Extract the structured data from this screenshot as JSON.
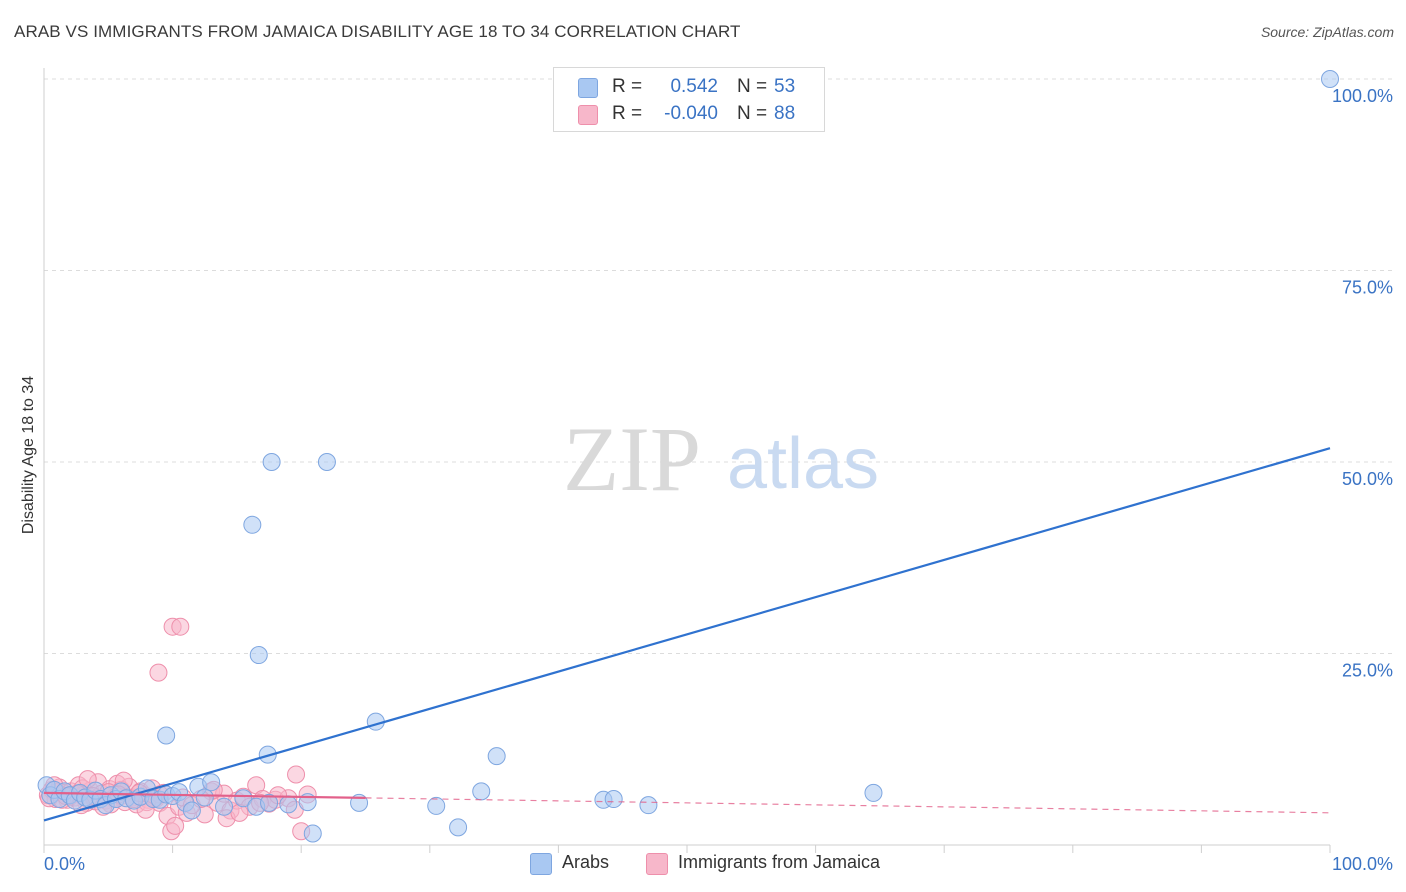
{
  "title": "ARAB VS IMMIGRANTS FROM JAMAICA DISABILITY AGE 18 TO 34 CORRELATION CHART",
  "source": "Source: ZipAtlas.com",
  "watermark": {
    "zip": "ZIP",
    "atlas": "atlas"
  },
  "colors": {
    "arabs_fill": "#a9c8f2",
    "arabs_stroke": "#7ea6e0",
    "arabs_line": "#2f72cf",
    "jamaica_fill": "#f7b7ca",
    "jamaica_stroke": "#ee8fab",
    "jamaica_line": "#e2608a",
    "axis_text": "#3a73c4",
    "grid": "#dcdcdc"
  },
  "legend": {
    "rows": [
      {
        "r_label": "R =",
        "r_value": "0.542",
        "n_label": "N =",
        "n_value": "53"
      },
      {
        "r_label": "R =",
        "r_value": "-0.040",
        "n_label": "N =",
        "n_value": "88"
      }
    ]
  },
  "bottom_legend": {
    "arabs": "Arabs",
    "jamaica": "Immigrants from Jamaica"
  },
  "chart_data": {
    "type": "scatter",
    "title": "ARAB VS IMMIGRANTS FROM JAMAICA DISABILITY AGE 18 TO 34 CORRELATION CHART",
    "xlabel": "",
    "ylabel": "Disability Age 18 to 34",
    "xlim": [
      0,
      100
    ],
    "ylim": [
      0,
      100
    ],
    "x_tick_labels": [
      "0.0%",
      "100.0%"
    ],
    "y_ticks": [
      25,
      50,
      75,
      100
    ],
    "y_tick_labels": [
      "25.0%",
      "50.0%",
      "75.0%",
      "100.0%"
    ],
    "series": [
      {
        "name": "Arabs",
        "r": 0.542,
        "n": 53,
        "trend": {
          "x0": 0,
          "y0": 3.2,
          "x1": 100,
          "y1": 51.8,
          "dashed_from": null
        },
        "points": [
          [
            0.2,
            7.8
          ],
          [
            0.5,
            6.5
          ],
          [
            0.8,
            7.2
          ],
          [
            1.2,
            6.0
          ],
          [
            1.6,
            7.0
          ],
          [
            2.0,
            6.5
          ],
          [
            2.4,
            5.8
          ],
          [
            2.8,
            6.8
          ],
          [
            3.2,
            6.2
          ],
          [
            3.6,
            5.9
          ],
          [
            4.0,
            7.1
          ],
          [
            4.4,
            6.0
          ],
          [
            4.8,
            5.2
          ],
          [
            5.2,
            6.5
          ],
          [
            5.6,
            6.0
          ],
          [
            6.0,
            7.0
          ],
          [
            6.4,
            6.1
          ],
          [
            7.0,
            5.8
          ],
          [
            7.5,
            6.3
          ],
          [
            8.0,
            7.4
          ],
          [
            8.5,
            6.0
          ],
          [
            9.0,
            5.9
          ],
          [
            9.5,
            6.6
          ],
          [
            10.0,
            6.4
          ],
          [
            10.5,
            6.9
          ],
          [
            11.0,
            5.5
          ],
          [
            11.5,
            4.5
          ],
          [
            12.0,
            7.6
          ],
          [
            12.5,
            6.2
          ],
          [
            13.0,
            8.2
          ],
          [
            14.0,
            5.0
          ],
          [
            15.5,
            6.1
          ],
          [
            16.5,
            5.0
          ],
          [
            17.5,
            5.5
          ],
          [
            19.0,
            5.3
          ],
          [
            20.5,
            5.6
          ],
          [
            20.9,
            1.5
          ],
          [
            24.5,
            5.5
          ],
          [
            30.5,
            5.1
          ],
          [
            34.0,
            7.0
          ],
          [
            43.5,
            5.9
          ],
          [
            44.3,
            6.0
          ],
          [
            47.0,
            5.2
          ],
          [
            64.5,
            6.8
          ],
          [
            9.5,
            14.3
          ],
          [
            16.2,
            41.8
          ],
          [
            17.7,
            50.0
          ],
          [
            22.0,
            50.0
          ],
          [
            16.7,
            24.8
          ],
          [
            17.4,
            11.8
          ],
          [
            25.8,
            16.1
          ],
          [
            35.2,
            11.6
          ],
          [
            32.2,
            2.3
          ],
          [
            100.0,
            100.0
          ]
        ]
      },
      {
        "name": "Immigrants from Jamaica",
        "r": -0.04,
        "n": 88,
        "trend": {
          "x0": 0,
          "y0": 6.8,
          "x1": 100,
          "y1": 4.2,
          "dashed_from": 25
        },
        "points": [
          [
            0.3,
            6.5
          ],
          [
            0.6,
            7.2
          ],
          [
            0.9,
            6.0
          ],
          [
            1.2,
            7.5
          ],
          [
            1.5,
            6.8
          ],
          [
            1.8,
            5.9
          ],
          [
            2.1,
            7.0
          ],
          [
            2.4,
            6.2
          ],
          [
            2.7,
            7.8
          ],
          [
            3.0,
            6.5
          ],
          [
            3.3,
            5.5
          ],
          [
            3.6,
            7.1
          ],
          [
            3.9,
            6.0
          ],
          [
            4.2,
            8.2
          ],
          [
            4.5,
            6.7
          ],
          [
            4.8,
            5.8
          ],
          [
            5.1,
            7.3
          ],
          [
            5.4,
            6.1
          ],
          [
            5.7,
            8.0
          ],
          [
            6.0,
            6.4
          ],
          [
            6.3,
            5.6
          ],
          [
            6.6,
            7.6
          ],
          [
            6.9,
            6.2
          ],
          [
            7.2,
            5.3
          ],
          [
            7.5,
            7.0
          ],
          [
            7.8,
            6.5
          ],
          [
            8.1,
            5.9
          ],
          [
            8.4,
            7.4
          ],
          [
            8.7,
            6.0
          ],
          [
            9.0,
            5.5
          ],
          [
            9.3,
            6.8
          ],
          [
            9.6,
            3.8
          ],
          [
            9.9,
            1.8
          ],
          [
            10.2,
            2.5
          ],
          [
            10.5,
            5.0
          ],
          [
            10.8,
            6.2
          ],
          [
            11.1,
            4.2
          ],
          [
            12.5,
            4.0
          ],
          [
            13.0,
            7.0
          ],
          [
            13.5,
            5.5
          ],
          [
            14.0,
            6.7
          ],
          [
            14.5,
            4.5
          ],
          [
            15.0,
            5.8
          ],
          [
            15.5,
            6.3
          ],
          [
            16.0,
            5.0
          ],
          [
            16.5,
            7.8
          ],
          [
            17.0,
            6.0
          ],
          [
            17.5,
            5.4
          ],
          [
            18.0,
            5.9
          ],
          [
            19.0,
            6.1
          ],
          [
            19.5,
            4.6
          ],
          [
            20.0,
            1.8
          ],
          [
            20.5,
            6.6
          ],
          [
            10.0,
            28.5
          ],
          [
            10.6,
            28.5
          ],
          [
            8.9,
            22.5
          ],
          [
            19.6,
            9.2
          ],
          [
            13.2,
            7.2
          ],
          [
            1.0,
            6.9
          ],
          [
            2.0,
            6.3
          ],
          [
            3.0,
            7.4
          ],
          [
            4.0,
            5.7
          ],
          [
            5.0,
            6.9
          ],
          [
            6.0,
            7.2
          ],
          [
            7.0,
            6.0
          ],
          [
            8.0,
            5.6
          ],
          [
            9.0,
            6.6
          ],
          [
            0.4,
            6.1
          ],
          [
            1.4,
            5.9
          ],
          [
            2.6,
            6.7
          ],
          [
            3.8,
            6.4
          ],
          [
            5.2,
            5.3
          ],
          [
            6.2,
            8.4
          ],
          [
            7.4,
            6.8
          ],
          [
            8.6,
            6.1
          ],
          [
            11.5,
            5.2
          ],
          [
            12.2,
            6.0
          ],
          [
            14.2,
            3.5
          ],
          [
            15.2,
            4.2
          ],
          [
            16.8,
            5.5
          ],
          [
            18.2,
            6.5
          ],
          [
            3.4,
            8.6
          ],
          [
            4.6,
            5.0
          ],
          [
            0.8,
            7.8
          ],
          [
            1.7,
            6.4
          ],
          [
            2.9,
            5.2
          ],
          [
            5.8,
            6.6
          ],
          [
            7.9,
            4.6
          ]
        ]
      }
    ]
  }
}
